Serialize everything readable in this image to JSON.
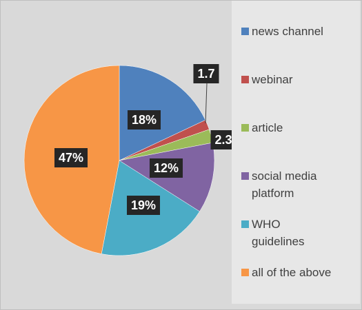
{
  "chart_data": {
    "type": "pie",
    "categories": [
      "news channel",
      "webinar",
      "article",
      "social media platform",
      "WHO guidelines",
      "all of the above"
    ],
    "values": [
      18,
      1.7,
      2.3,
      12,
      19,
      47
    ],
    "value_labels": [
      "18%",
      "1.7",
      "2.3",
      "12%",
      "19%",
      "47%"
    ],
    "colors": [
      "#4f81bd",
      "#c0504d",
      "#9bbb59",
      "#8064a2",
      "#4bacc6",
      "#f79646"
    ],
    "legend": "right"
  }
}
